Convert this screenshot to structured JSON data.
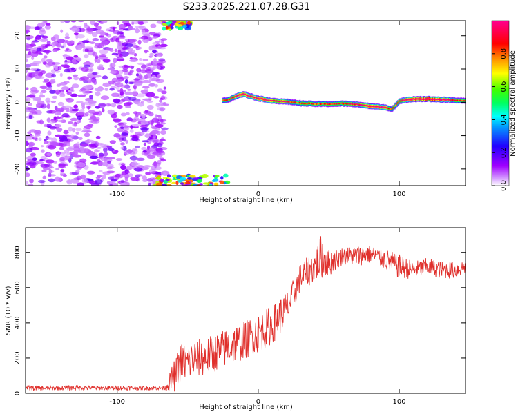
{
  "title": "S233.2025.221.07.28.G31",
  "chart_data": [
    {
      "type": "heatmap",
      "xlabel": "Height of straight line (km)",
      "ylabel": "Frequency (Hz)",
      "xlim": [
        -165,
        147
      ],
      "ylim": [
        -25,
        24.5
      ],
      "xticks": [
        -100,
        0,
        100
      ],
      "yticks": [
        -20,
        -10,
        0,
        10,
        20
      ],
      "colorbar": {
        "label": "Normalized spectral amplitude",
        "range": [
          0,
          1
        ],
        "ticks": [
          0.0,
          0.2,
          0.4,
          0.6,
          0.8
        ],
        "colors": [
          "#ffffff",
          "#a000ff",
          "#0000ff",
          "#00ffff",
          "#00ff00",
          "#ffff00",
          "#ff0000",
          "#ff0090"
        ]
      },
      "features": {
        "noise_region_x": [
          -165,
          -66
        ],
        "top_cluster": {
          "x": [
            -68,
            -48
          ],
          "freq": [
            22,
            24.5
          ]
        },
        "bottom_cluster": {
          "x": [
            -72,
            -22
          ],
          "freq": [
            -25,
            -22
          ]
        },
        "tone_line": {
          "x": [
            -25,
            -20,
            -15,
            -10,
            -5,
            0,
            5,
            10,
            15,
            20,
            25,
            30,
            40,
            50,
            60,
            70,
            80,
            90,
            95,
            100,
            105,
            110,
            120,
            130,
            140,
            147
          ],
          "freq": [
            0.5,
            1.0,
            2.0,
            2.5,
            1.8,
            1.2,
            0.8,
            0.5,
            0.3,
            0.2,
            0.0,
            -0.3,
            -0.5,
            -0.5,
            -0.4,
            -0.6,
            -1.2,
            -1.5,
            -2.0,
            0.2,
            0.8,
            1.0,
            1.0,
            0.8,
            0.6,
            0.5
          ],
          "amp": [
            0.45,
            0.55,
            0.75,
            0.85,
            0.7,
            0.8,
            0.85,
            0.7,
            0.75,
            0.6,
            0.5,
            0.55,
            0.5,
            0.55,
            0.55,
            0.65,
            0.9,
            0.75,
            0.5,
            0.6,
            0.8,
            0.85,
            0.95,
            0.85,
            0.6,
            0.5
          ]
        }
      }
    },
    {
      "type": "line",
      "xlabel": "Height of straight line (km)",
      "ylabel": "SNR (10 * v/v)",
      "xlim": [
        -165,
        147
      ],
      "ylim": [
        0,
        940
      ],
      "xticks": [
        -100,
        0,
        100
      ],
      "yticks": [
        0,
        200,
        400,
        600,
        800
      ],
      "series": [
        {
          "name": "SNR",
          "color": "#e0302c",
          "x": [
            -165,
            -150,
            -130,
            -110,
            -90,
            -75,
            -66,
            -60,
            -55,
            -50,
            -45,
            -40,
            -30,
            -20,
            -10,
            0,
            10,
            20,
            25,
            30,
            40,
            45,
            50,
            55,
            60,
            70,
            80,
            90,
            100,
            110,
            120,
            130,
            140,
            147
          ],
          "values": [
            30,
            28,
            32,
            30,
            30,
            30,
            30,
            90,
            180,
            170,
            200,
            200,
            230,
            270,
            300,
            340,
            390,
            480,
            560,
            660,
            720,
            780,
            740,
            760,
            780,
            780,
            790,
            760,
            720,
            700,
            720,
            700,
            700,
            720
          ],
          "noise": [
            15,
            12,
            14,
            12,
            12,
            12,
            12,
            90,
            110,
            110,
            110,
            110,
            110,
            110,
            110,
            110,
            110,
            100,
            90,
            80,
            90,
            130,
            80,
            60,
            50,
            60,
            50,
            60,
            70,
            50,
            50,
            50,
            50,
            40
          ]
        }
      ]
    }
  ]
}
